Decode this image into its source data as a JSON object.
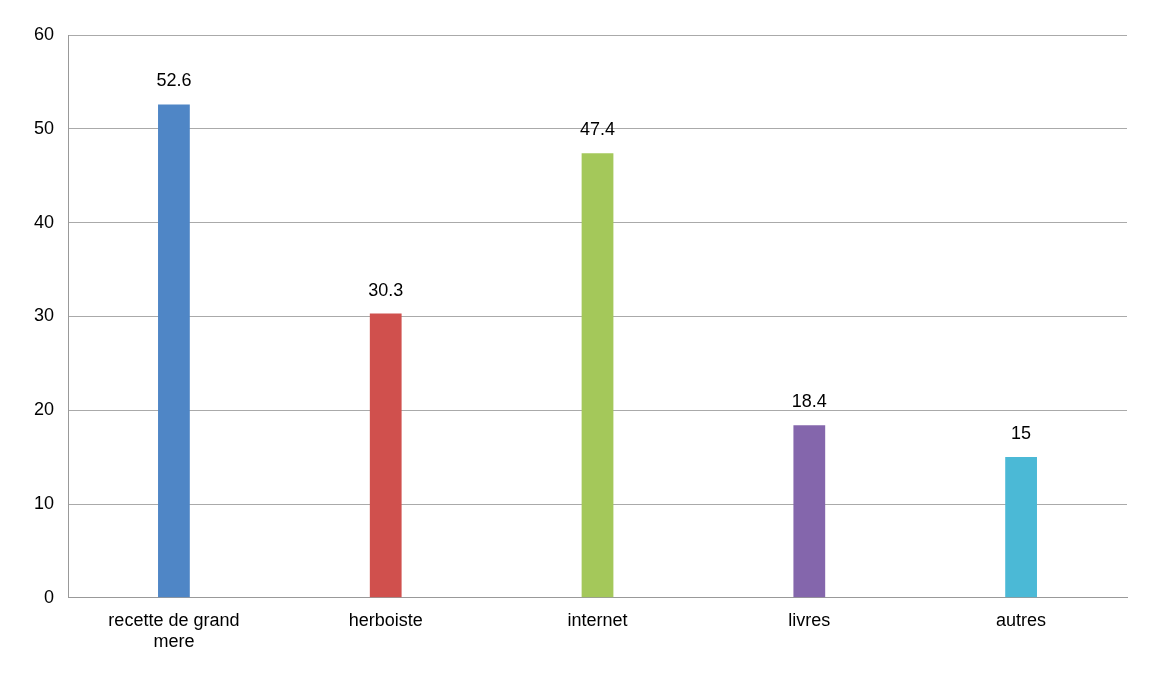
{
  "chart_data": {
    "type": "bar",
    "categories": [
      "recette de grand mere",
      "herboiste",
      "internet",
      "livres",
      "autres"
    ],
    "values": [
      52.6,
      30.3,
      47.4,
      18.4,
      15
    ],
    "colors": [
      "#4f86c6",
      "#d0504d",
      "#a4c85a",
      "#8466ac",
      "#4bb9d6"
    ],
    "ylim": [
      0,
      60
    ],
    "yticks": [
      0,
      10,
      20,
      30,
      40,
      50,
      60
    ],
    "grid": "y",
    "data_labels": true,
    "legend": false
  }
}
